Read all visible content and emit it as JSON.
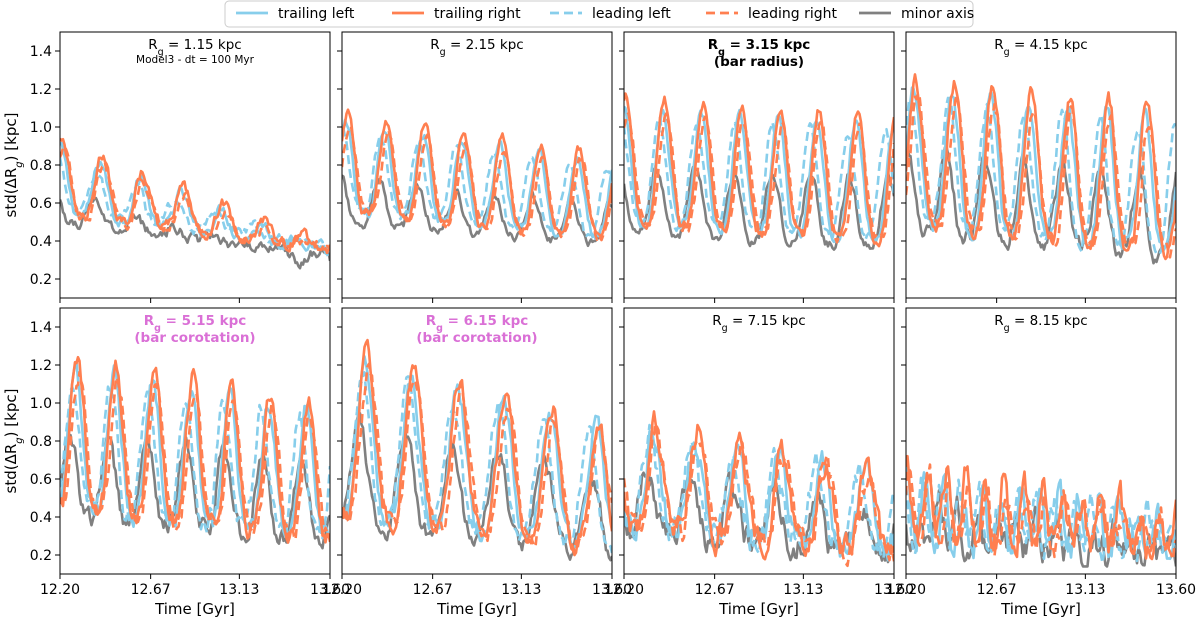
{
  "chart_data": {
    "type": "line",
    "ylabel": "std(ΔR_g) [kpc]",
    "xlabel": "Time [Gyr]",
    "xlim": [
      12.2,
      13.6
    ],
    "ylim": [
      0.1,
      1.5
    ],
    "xticks": [
      "12.20",
      "12.67",
      "13.13",
      "13.60"
    ],
    "xtick_values": [
      12.2,
      12.67,
      13.13,
      13.6
    ],
    "yticks": [
      "0.2",
      "0.4",
      "0.6",
      "0.8",
      "1.0",
      "1.2",
      "1.4"
    ],
    "ytick_values": [
      0.2,
      0.4,
      0.6,
      0.8,
      1.0,
      1.2,
      1.4
    ],
    "grid": false,
    "legend": {
      "placement": "top-center",
      "entries": [
        {
          "name": "trailing left",
          "color": "#87ceeb",
          "dash": "solid"
        },
        {
          "name": "trailing right",
          "color": "#ff7f50",
          "dash": "solid"
        },
        {
          "name": "leading left",
          "color": "#87ceeb",
          "dash": "dashed"
        },
        {
          "name": "leading right",
          "color": "#ff7f50",
          "dash": "dashed"
        },
        {
          "name": "minor axis",
          "color": "#808080",
          "dash": "solid"
        }
      ]
    },
    "panels": [
      {
        "rg_value": "1.15 kpc",
        "note": "",
        "subtitle": "Model3 - dt = 100 Myr",
        "bold": false,
        "title_color": "#000000",
        "period": 0.21,
        "phase": 0.0,
        "amps": [
          0.9,
          0.35
        ],
        "base": [
          0.55,
          0.36
        ],
        "noise": 0.04
      },
      {
        "rg_value": "2.15 kpc",
        "note": "",
        "subtitle": "",
        "bold": false,
        "title_color": "#000000",
        "period": 0.2,
        "phase": 0.02,
        "amps": [
          1.03,
          0.82
        ],
        "base": [
          0.55,
          0.42
        ],
        "noise": 0.035
      },
      {
        "rg_value": "3.15 kpc",
        "note": "(bar radius)",
        "subtitle": "",
        "bold": true,
        "title_color": "#000000",
        "period": 0.2,
        "phase": 0.0,
        "amps": [
          1.1,
          1.02
        ],
        "base": [
          0.5,
          0.4
        ],
        "noise": 0.04
      },
      {
        "rg_value": "4.15 kpc",
        "note": "",
        "subtitle": "",
        "bold": false,
        "title_color": "#000000",
        "period": 0.2,
        "phase": 0.04,
        "amps": [
          1.2,
          1.05
        ],
        "base": [
          0.5,
          0.35
        ],
        "noise": 0.06
      },
      {
        "rg_value": "5.15 kpc",
        "note": "(bar corotation)",
        "subtitle": "",
        "bold": true,
        "title_color": "#da70d6",
        "period": 0.2,
        "phase": 0.08,
        "amps": [
          1.2,
          0.95
        ],
        "base": [
          0.45,
          0.3
        ],
        "noise": 0.07
      },
      {
        "rg_value": "6.15 kpc",
        "note": "(bar corotation)",
        "subtitle": "",
        "bold": true,
        "title_color": "#da70d6",
        "period": 0.24,
        "phase": 0.12,
        "amps": [
          1.25,
          0.85
        ],
        "base": [
          0.4,
          0.25
        ],
        "noise": 0.07
      },
      {
        "rg_value": "7.15 kpc",
        "note": "",
        "subtitle": "",
        "bold": false,
        "title_color": "#000000",
        "period": 0.22,
        "phase": 0.15,
        "amps": [
          0.9,
          0.6
        ],
        "base": [
          0.35,
          0.22
        ],
        "noise": 0.1
      },
      {
        "rg_value": "8.15 kpc",
        "note": "",
        "subtitle": "",
        "bold": false,
        "title_color": "#000000",
        "period": 0.1,
        "phase": 0.0,
        "amps": [
          0.65,
          0.4
        ],
        "base": [
          0.3,
          0.22
        ],
        "noise": 0.12
      }
    ]
  }
}
